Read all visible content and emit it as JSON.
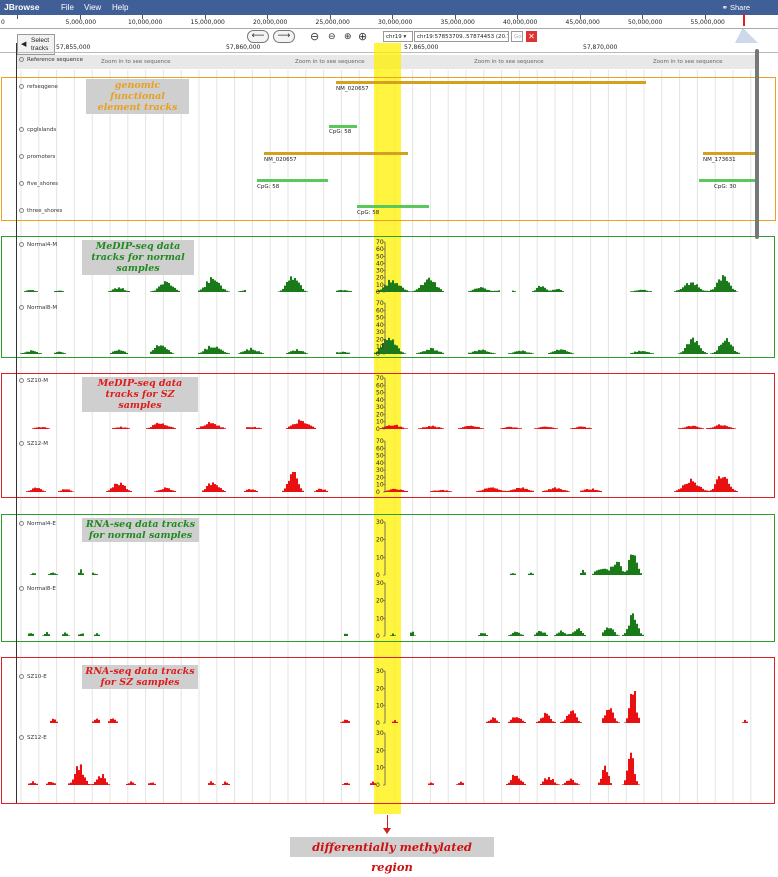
{
  "app": {
    "brand": "JBrowse",
    "menus": [
      "File",
      "View",
      "Help"
    ],
    "share_label": "Share"
  },
  "overview": {
    "labels": [
      "0",
      "5,000,000",
      "10,000,000",
      "15,000,000",
      "20,000,000",
      "25,000,000",
      "30,000,000",
      "35,000,000",
      "40,000,000",
      "45,000,000",
      "50,000,000",
      "55,000,000"
    ]
  },
  "nav": {
    "chromosome": "chr19",
    "location": "chr19:57853709..57874453 (20.74 Kb)",
    "go_label": "Go",
    "select_tracks_label": "Select tracks"
  },
  "ruler": {
    "labels": [
      "57,855,000",
      "57,860,000",
      "57,865,000",
      "57,870,000"
    ]
  },
  "reference": {
    "label": "Reference sequence",
    "zoom_text": "Zoom in to see sequence"
  },
  "track_labels": {
    "refseqgene": "refseqgene",
    "cpgislands": "cpgIslands",
    "promoters": "promoters",
    "five_shores": "five_shores",
    "three_shores": "three_shores",
    "normal4_m": "Normal4-M",
    "normal8_m": "Normal8-M",
    "sz10_m": "SZ10-M",
    "sz12_m": "SZ12-M",
    "normal4_e": "Normal4-E",
    "normal8_e": "Normal8-E",
    "sz10_e": "SZ10-E",
    "sz12_e": "SZ12-E"
  },
  "feature_labels": {
    "refseqgene": "NM_020657",
    "cpgislands": "CpG: 58",
    "promoter_1": "NM_020657",
    "promoter_2": "NM_173631",
    "five_shore_1": "CpG: 58",
    "five_shore_2": "CpG: 30",
    "three_shore": "CpG: 58"
  },
  "captions": {
    "functional": "genomic functional element tracks",
    "medip_normal": "MeDIP-seq data tracks for normal samples",
    "medip_sz": "MeDIP-seq data tracks for SZ samples",
    "rnaseq_normal": "RNA-seq data tracks for normal samples",
    "rnaseq_sz": "RNA-seq data tracks for SZ samples",
    "dmr": "differentially methylated region"
  },
  "axis": {
    "medip_ticks": [
      "70",
      "60",
      "50",
      "40",
      "30",
      "20",
      "10",
      "0"
    ],
    "rnaseq_ticks": [
      "30",
      "20",
      "10",
      "0"
    ]
  },
  "colors": {
    "menubar": "#3f5f96",
    "functional_border": "#f0a020",
    "normal_border": "#2aa02a",
    "sz_border": "#e02020",
    "normal_bars": "#1a7a1a",
    "sz_bars": "#e81010",
    "refseq_feature": "#d4a020",
    "cpg_feature": "#5ac85a",
    "dmr_highlight": "#fff000",
    "functional_caption_text": "#e8a020",
    "normal_caption_text": "#1f8a1f",
    "sz_caption_text": "#e01a1a"
  },
  "icons": [
    "left-arrow-icon",
    "right-arrow-icon",
    "zoom-out-large-icon",
    "zoom-out-small-icon",
    "zoom-in-small-icon",
    "zoom-in-large-icon",
    "share-icon",
    "clear-highlight-icon"
  ]
}
